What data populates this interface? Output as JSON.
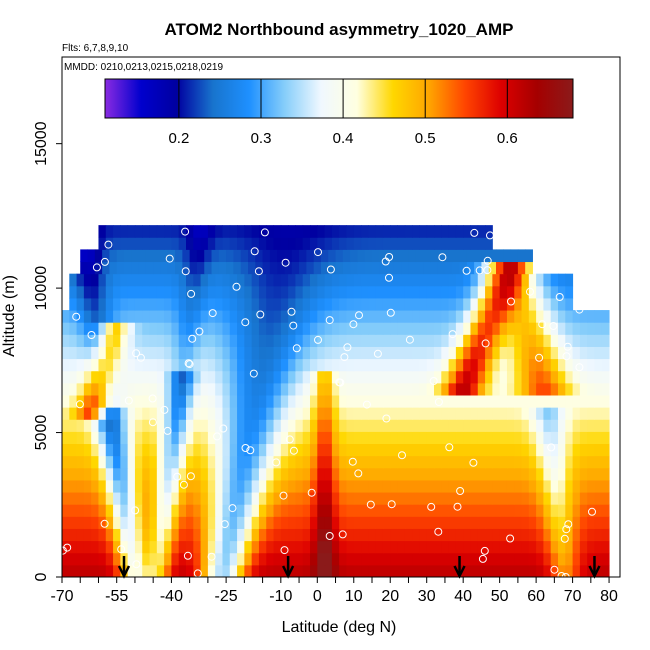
{
  "chart_data": {
    "type": "heatmap",
    "title": "ATOM2 Northbound asymmetry_1020_AMP",
    "flights_note": "Flts: 6,7,8,9,10",
    "dates_note": "MMDD: 0210,0213,0215,0218,0219",
    "xlabel": "Latitude (deg N)",
    "ylabel": "Altitude (m)",
    "xlim": [
      -70,
      83
    ],
    "ylim": [
      0,
      18000
    ],
    "x_ticks": [
      "-70",
      "-55",
      "-40",
      "-25",
      "-10",
      "0",
      "10",
      "20",
      "30",
      "40",
      "50",
      "60",
      "70",
      "80"
    ],
    "x_tick_values": [
      -70,
      -55,
      -40,
      -25,
      -10,
      0,
      10,
      20,
      30,
      40,
      50,
      60,
      70,
      80
    ],
    "x_minor_ticks": [
      -65,
      -60,
      -50,
      -45,
      -35,
      -30,
      -20,
      -15,
      -5,
      5,
      15,
      25,
      35,
      45,
      55,
      65,
      75
    ],
    "y_ticks": [
      "0",
      "5000",
      "10000",
      "15000"
    ],
    "y_tick_values": [
      0,
      5000,
      10000,
      15000
    ],
    "colorbar": {
      "range": [
        0.11,
        0.68
      ],
      "ticks": [
        "0.2",
        "0.3",
        "0.4",
        "0.5",
        "0.6"
      ],
      "tick_values": [
        0.2,
        0.3,
        0.4,
        0.5,
        0.6
      ],
      "colors": [
        "#8a2be2",
        "#0000cd",
        "#0000a0",
        "#1874cd",
        "#1e90ff",
        "#87cefa",
        "#f0f8ff",
        "#ffffe0",
        "#ffd700",
        "#ffa500",
        "#ff4500",
        "#dd0000",
        "#a50000",
        "#8b1a1a"
      ]
    },
    "arrow_latitudes": [
      -53,
      -8,
      39,
      76
    ],
    "grid": false,
    "legend": "colorbar top-inside"
  }
}
